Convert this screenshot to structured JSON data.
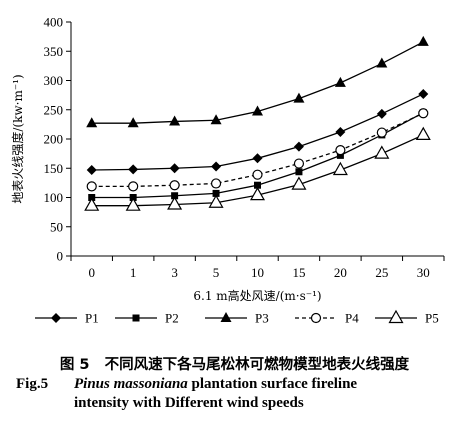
{
  "chart_data": {
    "type": "line",
    "categories": [
      "0",
      "1",
      "3",
      "5",
      "10",
      "15",
      "20",
      "25",
      "30"
    ],
    "xlabel": "6.1 m高处风速/(m·s⁻¹)",
    "ylabel": "地表火线强度/(kw·m⁻¹)",
    "ylim": [
      0,
      400
    ],
    "yticks": [
      "0",
      "50",
      "100",
      "150",
      "200",
      "250",
      "300",
      "350",
      "400"
    ],
    "grid": false,
    "legend_position": "bottom",
    "series": [
      {
        "name": "P1",
        "marker": "diamond",
        "line": "solid",
        "values": [
          147,
          148,
          150,
          153,
          167,
          187,
          212,
          243,
          277
        ]
      },
      {
        "name": "P2",
        "marker": "square",
        "line": "solid",
        "values": [
          100,
          100,
          103,
          107,
          121,
          144,
          172,
          207,
          245
        ]
      },
      {
        "name": "P3",
        "marker": "triangle",
        "line": "solid",
        "values": [
          227,
          227,
          230,
          232,
          247,
          269,
          296,
          329,
          366
        ]
      },
      {
        "name": "P4",
        "marker": "circle-open",
        "line": "dashed",
        "values": [
          119,
          119,
          121,
          124,
          139,
          158,
          181,
          211,
          244
        ]
      },
      {
        "name": "P5",
        "marker": "triangle-open",
        "line": "solid",
        "values": [
          86,
          86,
          88,
          91,
          104,
          122,
          147,
          175,
          207
        ]
      }
    ]
  },
  "caption": {
    "cn_label": "图 5",
    "cn_text": "不同风速下各马尾松林可燃物模型地表火线强度",
    "en_label": "Fig.5",
    "en_species": "Pinus massoniana",
    "en_line1_rest": "plantation surface fireline",
    "en_line2": "intensity with Different wind speeds"
  }
}
